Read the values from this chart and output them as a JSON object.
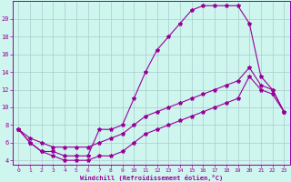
{
  "xlabel": "Windchill (Refroidissement éolien,°C)",
  "line_color": "#990099",
  "bg_color": "#cef5ee",
  "grid_color": "#aacccc",
  "hours": [
    0,
    1,
    2,
    3,
    4,
    5,
    6,
    7,
    8,
    9,
    10,
    11,
    12,
    13,
    14,
    15,
    16,
    17,
    18,
    19,
    20,
    21,
    22,
    23
  ],
  "temp": [
    7.5,
    6.0,
    5.0,
    5.0,
    4.5,
    4.5,
    4.5,
    7.5,
    7.5,
    8.0,
    11.0,
    14.0,
    16.5,
    18.0,
    19.5,
    21.0,
    21.5,
    21.5,
    21.5,
    21.5,
    19.5,
    13.5,
    12.0,
    9.5
  ],
  "windchill": [
    7.5,
    6.0,
    5.0,
    4.5,
    4.0,
    4.0,
    4.0,
    4.5,
    4.5,
    5.0,
    6.0,
    7.0,
    7.5,
    8.0,
    8.5,
    9.0,
    9.5,
    10.0,
    10.5,
    11.0,
    13.5,
    12.0,
    11.5,
    9.5
  ],
  "trend": [
    7.5,
    6.5,
    6.0,
    5.5,
    5.5,
    5.5,
    5.5,
    6.0,
    6.5,
    7.0,
    8.0,
    9.0,
    9.5,
    10.0,
    10.5,
    11.0,
    11.5,
    12.0,
    12.5,
    13.0,
    14.5,
    12.5,
    12.0,
    9.5
  ],
  "ylim": [
    3.5,
    22.0
  ],
  "xlim": [
    -0.5,
    23.5
  ],
  "yticks": [
    4,
    6,
    8,
    10,
    12,
    14,
    16,
    18,
    20
  ],
  "xticks": [
    0,
    1,
    2,
    3,
    4,
    5,
    6,
    7,
    8,
    9,
    10,
    11,
    12,
    13,
    14,
    15,
    16,
    17,
    18,
    19,
    20,
    21,
    22,
    23
  ]
}
